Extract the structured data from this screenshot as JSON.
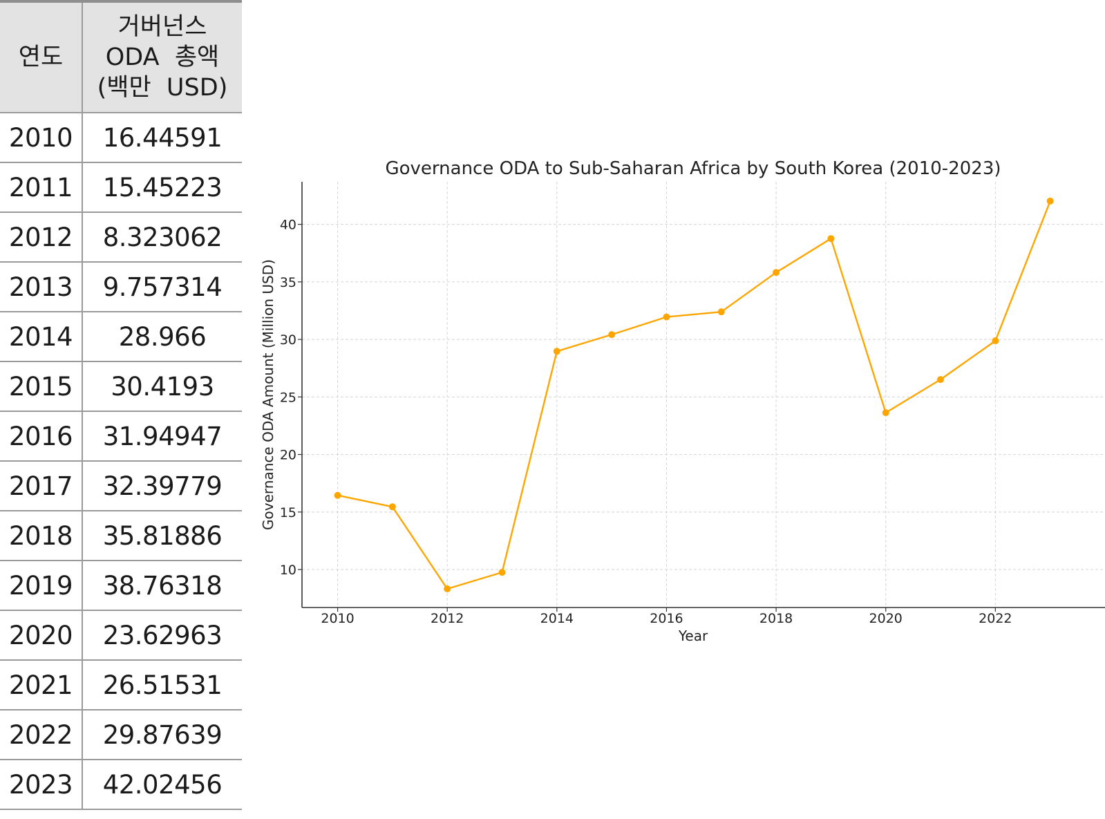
{
  "table": {
    "col_year": "연도",
    "col_amount_lines": [
      "거버넌스",
      "ODA  총액",
      "(백만  USD)"
    ],
    "rows": [
      {
        "year": "2010",
        "amount": "16.44591"
      },
      {
        "year": "2011",
        "amount": "15.45223"
      },
      {
        "year": "2012",
        "amount": "8.323062"
      },
      {
        "year": "2013",
        "amount": "9.757314"
      },
      {
        "year": "2014",
        "amount": "28.966"
      },
      {
        "year": "2015",
        "amount": "30.4193"
      },
      {
        "year": "2016",
        "amount": "31.94947"
      },
      {
        "year": "2017",
        "amount": "32.39779"
      },
      {
        "year": "2018",
        "amount": "35.81886"
      },
      {
        "year": "2019",
        "amount": "38.76318"
      },
      {
        "year": "2020",
        "amount": "23.62963"
      },
      {
        "year": "2021",
        "amount": "26.51531"
      },
      {
        "year": "2022",
        "amount": "29.87639"
      },
      {
        "year": "2023",
        "amount": "42.02456"
      }
    ]
  },
  "chart_data": {
    "type": "line",
    "title": "Governance ODA to Sub-Saharan Africa by South Korea (2010-2023)",
    "xlabel": "Year",
    "ylabel": "Governance ODA Amount (Million USD)",
    "x": [
      2010,
      2011,
      2012,
      2013,
      2014,
      2015,
      2016,
      2017,
      2018,
      2019,
      2020,
      2021,
      2022,
      2023
    ],
    "series": [
      {
        "values": [
          16.44591,
          15.45223,
          8.323062,
          9.757314,
          28.966,
          30.4193,
          31.94947,
          32.39779,
          35.81886,
          38.76318,
          23.62963,
          26.51531,
          29.87639,
          42.02456
        ],
        "color": "#FFA500",
        "marker": "circle"
      }
    ],
    "xlim": [
      2009.35,
      2024.0
    ],
    "ylim": [
      6.7,
      43.7
    ],
    "xticks": [
      2010,
      2012,
      2014,
      2016,
      2018,
      2020,
      2022
    ],
    "yticks": [
      10,
      15,
      20,
      25,
      30,
      35,
      40
    ],
    "grid": true,
    "grid_style": "dashed"
  }
}
